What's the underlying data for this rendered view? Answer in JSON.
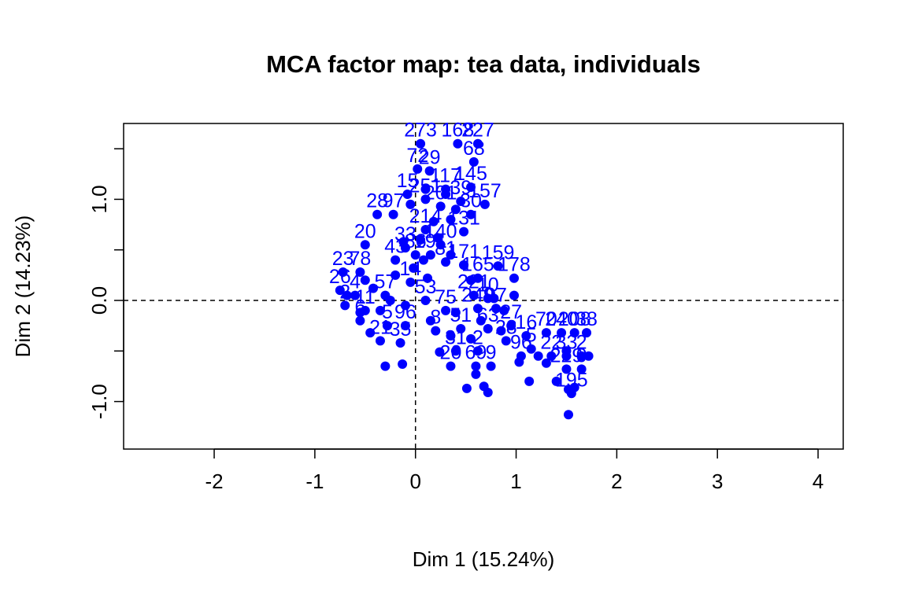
{
  "chart_data": {
    "type": "scatter",
    "title": "MCA factor map: tea data, individuals",
    "xlabel": "Dim 1 (15.24%)",
    "ylabel": "Dim 2 (14.23%)",
    "xlim": [
      -2.9,
      4.25
    ],
    "ylim": [
      -1.47,
      1.75
    ],
    "xticks": [
      -2,
      -1,
      0,
      1,
      2,
      3,
      4
    ],
    "yticks": [
      -1.0,
      0.0,
      1.0
    ],
    "ytick_labels": [
      "-1.0",
      "0.0",
      "1.0"
    ],
    "reference_lines": {
      "x": 0,
      "y": 0,
      "style": "dashed"
    },
    "point_color": "#0000ff",
    "points": [
      {
        "x": 0.58,
        "y": 1.37,
        "label": "68"
      },
      {
        "x": 0.05,
        "y": 1.55,
        "label": "273"
      },
      {
        "x": 0.42,
        "y": 1.55,
        "label": "168"
      },
      {
        "x": 0.62,
        "y": 1.55,
        "label": "227"
      },
      {
        "x": 0.02,
        "y": 1.3,
        "label": "72"
      },
      {
        "x": 0.14,
        "y": 1.28,
        "label": "29"
      },
      {
        "x": 0.69,
        "y": 0.95,
        "label": "157"
      },
      {
        "x": 0.55,
        "y": 1.12,
        "label": "145"
      },
      {
        "x": 0.3,
        "y": 1.1,
        "label": "117"
      },
      {
        "x": -0.08,
        "y": 1.05,
        "label": "15"
      },
      {
        "x": 0.1,
        "y": 1.0,
        "label": "251"
      },
      {
        "x": 0.45,
        "y": 0.98,
        "label": "39"
      },
      {
        "x": 0.55,
        "y": 0.85,
        "label": "30"
      },
      {
        "x": 0.25,
        "y": 0.93,
        "label": "201"
      },
      {
        "x": -0.38,
        "y": 0.85,
        "label": "28"
      },
      {
        "x": -0.22,
        "y": 0.85,
        "label": "97"
      },
      {
        "x": 0.48,
        "y": 0.68,
        "label": "131"
      },
      {
        "x": 0.1,
        "y": 0.7,
        "label": "214"
      },
      {
        "x": -0.5,
        "y": 0.55,
        "label": "20"
      },
      {
        "x": 0.25,
        "y": 0.55,
        "label": "140"
      },
      {
        "x": -0.1,
        "y": 0.52,
        "label": "33"
      },
      {
        "x": 0.0,
        "y": 0.45,
        "label": "86"
      },
      {
        "x": 0.15,
        "y": 0.45,
        "label": "191"
      },
      {
        "x": 0.3,
        "y": 0.38,
        "label": "81"
      },
      {
        "x": -0.2,
        "y": 0.4,
        "label": "43"
      },
      {
        "x": 0.82,
        "y": 0.34,
        "label": "159"
      },
      {
        "x": 0.48,
        "y": 0.35,
        "label": "171"
      },
      {
        "x": -0.72,
        "y": 0.28,
        "label": "23"
      },
      {
        "x": -0.55,
        "y": 0.28,
        "label": "78"
      },
      {
        "x": 0.62,
        "y": 0.22,
        "label": "165"
      },
      {
        "x": 0.98,
        "y": 0.22,
        "label": "178"
      },
      {
        "x": -0.05,
        "y": 0.18,
        "label": "14"
      },
      {
        "x": -0.75,
        "y": 0.1,
        "label": "26"
      },
      {
        "x": -0.6,
        "y": 0.05,
        "label": "4"
      },
      {
        "x": 0.58,
        "y": 0.05,
        "label": "221"
      },
      {
        "x": 0.72,
        "y": 0.02,
        "label": "10"
      },
      {
        "x": -0.3,
        "y": 0.05,
        "label": "57"
      },
      {
        "x": 0.1,
        "y": 0.0,
        "label": "53"
      },
      {
        "x": -0.7,
        "y": -0.05,
        "label": "2"
      },
      {
        "x": -0.5,
        "y": -0.1,
        "label": "11"
      },
      {
        "x": 0.3,
        "y": -0.1,
        "label": "75"
      },
      {
        "x": 0.62,
        "y": -0.08,
        "label": "249"
      },
      {
        "x": 0.8,
        "y": -0.08,
        "label": "97"
      },
      {
        "x": -0.55,
        "y": -0.2,
        "label": "6"
      },
      {
        "x": -0.28,
        "y": -0.25,
        "label": "5"
      },
      {
        "x": -0.1,
        "y": -0.25,
        "label": "96"
      },
      {
        "x": 0.2,
        "y": -0.3,
        "label": "8"
      },
      {
        "x": 0.45,
        "y": -0.28,
        "label": "51"
      },
      {
        "x": 0.72,
        "y": -0.28,
        "label": "63"
      },
      {
        "x": 0.95,
        "y": -0.25,
        "label": "27"
      },
      {
        "x": 1.1,
        "y": -0.35,
        "label": "16"
      },
      {
        "x": 1.3,
        "y": -0.32,
        "label": "70"
      },
      {
        "x": 1.45,
        "y": -0.32,
        "label": "240"
      },
      {
        "x": 1.58,
        "y": -0.32,
        "label": "208"
      },
      {
        "x": 1.7,
        "y": -0.32,
        "label": "38"
      },
      {
        "x": -0.35,
        "y": -0.4,
        "label": "21"
      },
      {
        "x": -0.15,
        "y": -0.42,
        "label": "35"
      },
      {
        "x": 0.4,
        "y": -0.5,
        "label": "31"
      },
      {
        "x": 0.62,
        "y": -0.5,
        "label": "2"
      },
      {
        "x": 0.9,
        "y": -0.4,
        "label": "28"
      },
      {
        "x": 1.15,
        "y": -0.48,
        "label": "5"
      },
      {
        "x": 1.05,
        "y": -0.55,
        "label": "96"
      },
      {
        "x": 1.35,
        "y": -0.55,
        "label": "22"
      },
      {
        "x": 1.5,
        "y": -0.55,
        "label": "33"
      },
      {
        "x": 1.65,
        "y": -0.55,
        "label": "2"
      },
      {
        "x": 0.35,
        "y": -0.65,
        "label": "20"
      },
      {
        "x": 0.6,
        "y": -0.65,
        "label": "69"
      },
      {
        "x": 0.75,
        "y": -0.65,
        "label": "9"
      },
      {
        "x": 1.5,
        "y": -0.68,
        "label": "229"
      },
      {
        "x": 1.65,
        "y": -0.68,
        "label": "0"
      },
      {
        "x": 1.55,
        "y": -0.92,
        "label": "195"
      },
      {
        "x": 1.52,
        "y": -1.13,
        "label": ""
      },
      {
        "x": -0.3,
        "y": -0.65,
        "label": ""
      },
      {
        "x": -0.13,
        "y": -0.63,
        "label": ""
      },
      {
        "x": 0.51,
        "y": -0.87,
        "label": ""
      },
      {
        "x": 0.68,
        "y": -0.85,
        "label": ""
      },
      {
        "x": 0.72,
        "y": -0.91,
        "label": ""
      },
      {
        "x": 1.13,
        "y": -0.8,
        "label": ""
      },
      {
        "x": 1.4,
        "y": -0.8,
        "label": ""
      },
      {
        "x": 1.52,
        "y": -0.88,
        "label": ""
      },
      {
        "x": 1.58,
        "y": -0.86,
        "label": ""
      },
      {
        "x": 1.03,
        "y": -0.61,
        "label": ""
      },
      {
        "x": 0.6,
        "y": -0.73,
        "label": ""
      },
      {
        "x": 0.24,
        "y": -0.51,
        "label": ""
      },
      {
        "x": -0.45,
        "y": -0.32,
        "label": ""
      },
      {
        "x": -0.55,
        "y": -0.12,
        "label": ""
      },
      {
        "x": -0.68,
        "y": 0.05,
        "label": ""
      },
      {
        "x": -0.42,
        "y": 0.12,
        "label": ""
      },
      {
        "x": -0.2,
        "y": 0.25,
        "label": ""
      },
      {
        "x": -0.02,
        "y": 0.32,
        "label": ""
      },
      {
        "x": 0.12,
        "y": 0.22,
        "label": ""
      },
      {
        "x": 0.05,
        "y": 0.6,
        "label": ""
      },
      {
        "x": 0.18,
        "y": 0.78,
        "label": ""
      },
      {
        "x": 0.35,
        "y": 0.8,
        "label": ""
      },
      {
        "x": 0.1,
        "y": 1.1,
        "label": ""
      },
      {
        "x": 0.3,
        "y": 1.05,
        "label": ""
      },
      {
        "x": 0.4,
        "y": 0.9,
        "label": ""
      },
      {
        "x": -0.05,
        "y": 0.95,
        "label": ""
      },
      {
        "x": 0.48,
        "y": 0.35,
        "label": ""
      },
      {
        "x": 0.78,
        "y": 0.02,
        "label": ""
      },
      {
        "x": 0.88,
        "y": -0.1,
        "label": ""
      },
      {
        "x": 0.98,
        "y": 0.05,
        "label": ""
      },
      {
        "x": 0.85,
        "y": -0.3,
        "label": ""
      },
      {
        "x": 1.22,
        "y": -0.55,
        "label": ""
      },
      {
        "x": 1.5,
        "y": -0.5,
        "label": ""
      },
      {
        "x": 1.72,
        "y": -0.55,
        "label": ""
      },
      {
        "x": 1.3,
        "y": -0.62,
        "label": ""
      },
      {
        "x": 0.4,
        "y": -0.12,
        "label": ""
      },
      {
        "x": 0.15,
        "y": -0.2,
        "label": ""
      },
      {
        "x": -0.1,
        "y": -0.05,
        "label": ""
      },
      {
        "x": -0.35,
        "y": -0.1,
        "label": ""
      },
      {
        "x": -0.25,
        "y": 0.0,
        "label": ""
      },
      {
        "x": -0.5,
        "y": 0.2,
        "label": ""
      },
      {
        "x": 0.35,
        "y": 0.45,
        "label": ""
      },
      {
        "x": 0.08,
        "y": 0.4,
        "label": ""
      },
      {
        "x": -0.12,
        "y": 0.58,
        "label": ""
      },
      {
        "x": 0.22,
        "y": 0.62,
        "label": ""
      },
      {
        "x": 0.55,
        "y": 0.2,
        "label": ""
      },
      {
        "x": 0.65,
        "y": -0.2,
        "label": ""
      },
      {
        "x": 0.35,
        "y": -0.35,
        "label": ""
      },
      {
        "x": 0.55,
        "y": -0.38,
        "label": ""
      }
    ]
  }
}
